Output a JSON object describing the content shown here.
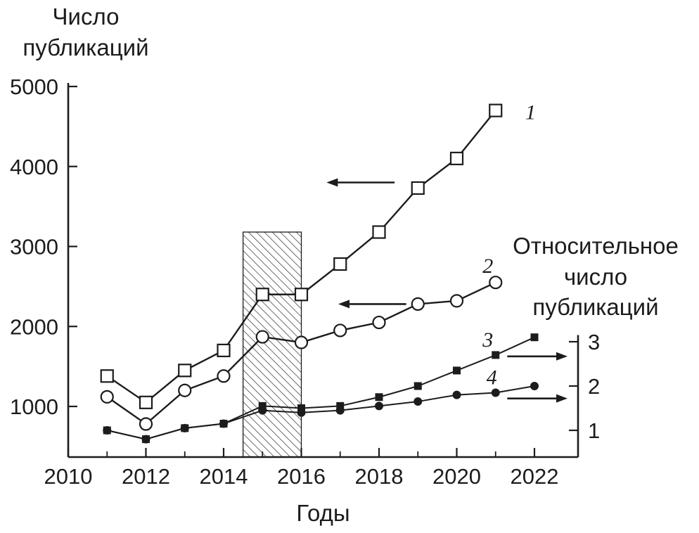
{
  "figure": {
    "background": "#ffffff",
    "ink": "#1c1c1c"
  },
  "chart_data": {
    "type": "line",
    "title": "",
    "x_axis": {
      "label": "Годы",
      "ticks": [
        2010,
        2012,
        2014,
        2016,
        2018,
        2020,
        2022
      ],
      "minor_ticks": [
        2011,
        2013,
        2015,
        2017,
        2019,
        2021
      ],
      "range": [
        2010,
        2023.1
      ]
    },
    "y_axis_left": {
      "label": "Число\nпубликаций",
      "ticks": [
        1000,
        2000,
        3000,
        4000,
        5000
      ],
      "range": [
        370,
        5050
      ]
    },
    "y_axis_right": {
      "label": "Относительное\nчисло\nпубликаций",
      "ticks": [
        1,
        2,
        3
      ],
      "range": [
        0.4,
        3.15
      ]
    },
    "series": [
      {
        "id": 1,
        "name": "1",
        "axis": "left",
        "marker": "open-square",
        "x": [
          2011,
          2012,
          2013,
          2014,
          2015,
          2016,
          2017,
          2018,
          2019,
          2020,
          2021
        ],
        "y": [
          1380,
          1050,
          1450,
          1700,
          2400,
          2400,
          2780,
          3180,
          3730,
          4100,
          4700
        ]
      },
      {
        "id": 2,
        "name": "2",
        "axis": "left",
        "marker": "open-circle",
        "x": [
          2011,
          2012,
          2013,
          2014,
          2015,
          2016,
          2017,
          2018,
          2019,
          2020,
          2021
        ],
        "y": [
          1120,
          780,
          1200,
          1380,
          1870,
          1800,
          1950,
          2050,
          2280,
          2320,
          2550
        ]
      },
      {
        "id": 3,
        "name": "3",
        "axis": "right",
        "marker": "filled-square",
        "x": [
          2011,
          2012,
          2013,
          2014,
          2015,
          2016,
          2017,
          2018,
          2019,
          2020,
          2021,
          2022
        ],
        "y": [
          1.0,
          0.8,
          1.05,
          1.15,
          1.55,
          1.5,
          1.55,
          1.75,
          2.0,
          2.35,
          2.7,
          3.1
        ]
      },
      {
        "id": 4,
        "name": "4",
        "axis": "right",
        "marker": "filled-circle",
        "x": [
          2011,
          2012,
          2013,
          2014,
          2015,
          2016,
          2017,
          2018,
          2019,
          2020,
          2021,
          2022
        ],
        "y": [
          1.0,
          0.8,
          1.05,
          1.15,
          1.45,
          1.4,
          1.45,
          1.55,
          1.65,
          1.8,
          1.85,
          2.0
        ]
      }
    ],
    "curve_labels": [
      {
        "text": "1",
        "axis": "left",
        "x": 2021.9,
        "y": 4680
      },
      {
        "text": "2",
        "axis": "left",
        "x": 2020.8,
        "y": 2760
      },
      {
        "text": "3",
        "axis": "right",
        "x": 2020.8,
        "y": 3.05
      },
      {
        "text": "4",
        "axis": "right",
        "x": 2020.9,
        "y": 2.2
      }
    ],
    "arrows": [
      {
        "direction": "left",
        "axis": "left",
        "y": 3800,
        "x_from": 2018.4,
        "x_to": 2016.65
      },
      {
        "direction": "left",
        "axis": "left",
        "y": 2280,
        "x_from": 2018.7,
        "x_to": 2016.95
      },
      {
        "direction": "right",
        "axis": "right",
        "y": 2.67,
        "x_from": 2021.3,
        "x_to": 2022.85
      },
      {
        "direction": "right",
        "axis": "right",
        "y": 1.72,
        "x_from": 2021.3,
        "x_to": 2022.85
      }
    ],
    "highlight_band": {
      "axis": "left",
      "x_from": 2014.5,
      "x_to": 2016.0,
      "y_top": 3180,
      "style": "diagonal-hatch"
    },
    "grid": false,
    "legend": "none",
    "ink_color": "#1c1c1c",
    "background": "#ffffff"
  }
}
